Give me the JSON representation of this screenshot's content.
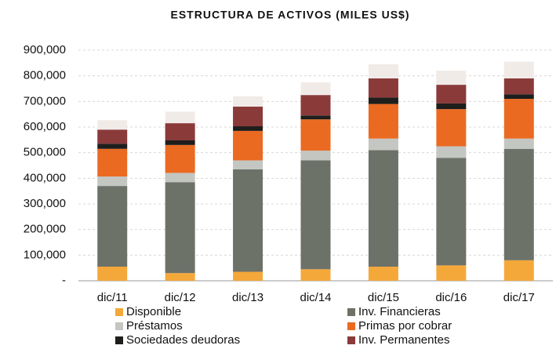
{
  "chart_data": {
    "type": "stacked_bar",
    "title": "ESTRUCTURA DE ACTIVOS (MILES US$)",
    "categories": [
      "dic/11",
      "dic/12",
      "dic/13",
      "dic/14",
      "dic/15",
      "dic/16",
      "dic/17"
    ],
    "series": [
      {
        "name": "Disponible",
        "color": "#f5a83a",
        "values": [
          55000,
          30000,
          35000,
          45000,
          55000,
          60000,
          80000
        ]
      },
      {
        "name": "Inv. Financieras",
        "color": "#6d7269",
        "values": [
          315000,
          355000,
          400000,
          425000,
          455000,
          420000,
          435000
        ]
      },
      {
        "name": "Préstamos",
        "color": "#c4c6c2",
        "values": [
          37000,
          36000,
          35000,
          38000,
          45000,
          45000,
          40000
        ]
      },
      {
        "name": "Primas por cobrar",
        "color": "#ea6a22",
        "values": [
          108000,
          109000,
          115000,
          122000,
          135000,
          145000,
          155000
        ]
      },
      {
        "name": "Sociedades deudoras",
        "color": "#1e1e1c",
        "values": [
          20000,
          18000,
          18000,
          15000,
          25000,
          22000,
          18000
        ]
      },
      {
        "name": "Inv. Permanentes",
        "color": "#8b3a3a",
        "values": [
          55000,
          67000,
          77000,
          80000,
          75000,
          73000,
          62000
        ]
      },
      {
        "color": "#f1ebe8",
        "values": [
          37000,
          45000,
          40000,
          50000,
          55000,
          55000,
          65000
        ]
      }
    ],
    "ylim": [
      0,
      900000
    ],
    "yticks": [
      {
        "value": 0,
        "label": "-"
      },
      {
        "value": 100000,
        "label": "100,000"
      },
      {
        "value": 200000,
        "label": "200,000"
      },
      {
        "value": 300000,
        "label": "300,000"
      },
      {
        "value": 400000,
        "label": "400,000"
      },
      {
        "value": 500000,
        "label": "500,000"
      },
      {
        "value": 600000,
        "label": "600,000"
      },
      {
        "value": 700000,
        "label": "700,000"
      },
      {
        "value": 800000,
        "label": "800,000"
      },
      {
        "value": 900000,
        "label": "900,000"
      }
    ],
    "grid": true
  }
}
